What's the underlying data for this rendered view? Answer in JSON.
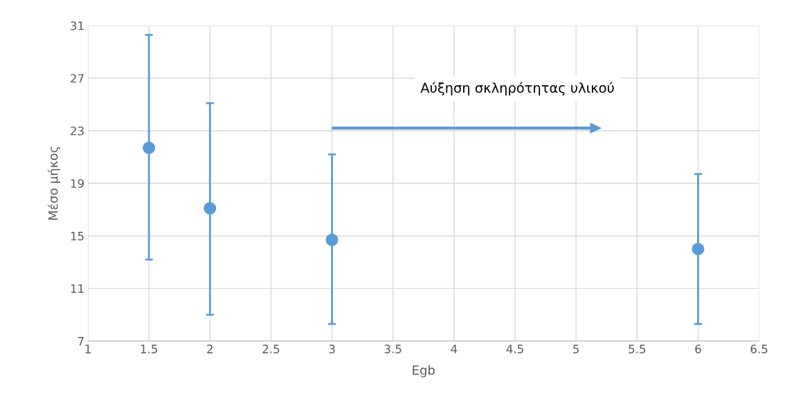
{
  "chart_data": {
    "type": "scatter",
    "xlabel": "Egb",
    "ylabel": "Μέσο μήκος",
    "x": [
      1.5,
      2,
      3,
      6
    ],
    "values": [
      21.7,
      17.1,
      14.7,
      14.0
    ],
    "errors": [
      [
        13.2,
        30.3
      ],
      [
        9.0,
        25.1
      ],
      [
        8.3,
        21.2
      ],
      [
        8.3,
        19.7
      ]
    ],
    "color": "#5b9bd5",
    "marker": "circle",
    "xlim": [
      1,
      6.5
    ],
    "xticks": [
      1,
      1.5,
      2,
      2.5,
      3,
      3.5,
      4,
      4.5,
      5,
      5.5,
      6,
      6.5
    ],
    "ylim": [
      7,
      31
    ],
    "yticks": [
      7,
      11,
      15,
      19,
      23,
      27,
      31
    ],
    "grid": true,
    "annotations": [
      "Αύξηση σκληρότητας υλικού"
    ]
  }
}
